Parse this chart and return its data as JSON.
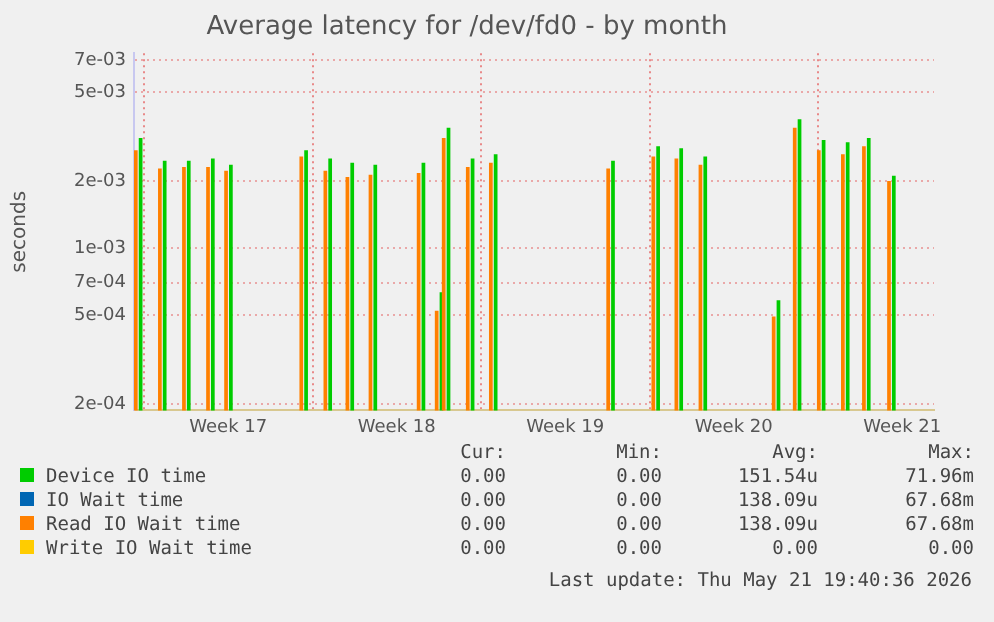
{
  "chart_data": {
    "type": "bar",
    "title": "Average latency for /dev/fd0 - by month",
    "ylabel": "seconds",
    "log": "y",
    "grid": true,
    "legend": "bottom",
    "xlim": [
      "2026-04-18T14:00",
      "2026-05-21T19:40"
    ],
    "ylim": [
      0.000187,
      0.0075
    ],
    "xticks": [
      {
        "value": "2026-04-19T00:00",
        "label": null
      },
      {
        "value": "2026-04-22T12:00",
        "label": "Week 17"
      },
      {
        "value": "2026-04-26T00:00",
        "label": null
      },
      {
        "value": "2026-04-29T12:00",
        "label": "Week 18"
      },
      {
        "value": "2026-05-03T00:00",
        "label": null
      },
      {
        "value": "2026-05-06T12:00",
        "label": "Week 19"
      },
      {
        "value": "2026-05-10T00:00",
        "label": null
      },
      {
        "value": "2026-05-13T12:00",
        "label": "Week 20"
      },
      {
        "value": "2026-05-17T00:00",
        "label": null
      },
      {
        "value": "2026-05-20T12:00",
        "label": "Week 21"
      }
    ],
    "yticks": [
      {
        "value": 0.0002,
        "label": "2e-04"
      },
      {
        "value": 0.0005,
        "label": "5e-04"
      },
      {
        "value": 0.0007,
        "label": "7e-04"
      },
      {
        "value": 0.001,
        "label": "1e-03"
      },
      {
        "value": 0.002,
        "label": "2e-03"
      },
      {
        "value": 0.005,
        "label": "5e-03"
      },
      {
        "value": 0.007,
        "label": "7e-03"
      }
    ],
    "x": [
      "2026-04-18T17:00",
      "2026-04-19T17:00",
      "2026-04-20T17:00",
      "2026-04-21T17:00",
      "2026-04-22T11:00",
      "2026-04-25T14:00",
      "2026-04-26T14:00",
      "2026-04-27T12:00",
      "2026-04-28T11:00",
      "2026-04-30T11:00",
      "2026-05-01T05:00",
      "2026-05-01T12:00",
      "2026-05-02T12:00",
      "2026-05-03T11:00",
      "2026-05-08T08:00",
      "2026-05-10T05:00",
      "2026-05-11T04:00",
      "2026-05-12T04:00",
      "2026-05-15T05:00",
      "2026-05-16T02:00",
      "2026-05-17T02:00",
      "2026-05-18T02:00",
      "2026-05-18T23:00",
      "2026-05-20T00:00"
    ],
    "series": [
      {
        "name": "Device IO time",
        "color": "#00cc00",
        "values": [
          0.0031,
          0.00245,
          0.00245,
          0.00251,
          0.00235,
          0.00273,
          0.00251,
          0.0024,
          0.00235,
          0.0024,
          0.00063,
          0.00345,
          0.00251,
          0.00262,
          0.00245,
          0.00285,
          0.00279,
          0.00256,
          0.00058,
          0.00376,
          0.00304,
          0.00297,
          0.0031,
          0.0021
        ]
      },
      {
        "name": "IO Wait time",
        "color": "#0066b3",
        "values": [
          null,
          null,
          null,
          null,
          null,
          null,
          null,
          null,
          null,
          null,
          null,
          null,
          null,
          null,
          null,
          null,
          null,
          null,
          null,
          null,
          null,
          null,
          null,
          null
        ]
      },
      {
        "name": "Read IO Wait time",
        "color": "#ff8000",
        "values": [
          0.00273,
          0.00226,
          0.0023,
          0.0023,
          0.00221,
          0.00256,
          0.00221,
          0.00207,
          0.00212,
          0.00216,
          0.00052,
          0.0031,
          0.0023,
          0.0024,
          0.00226,
          0.00256,
          0.00251,
          0.00235,
          0.00049,
          0.00345,
          0.00273,
          0.00262,
          0.00285,
          0.00199
        ]
      },
      {
        "name": "Write IO Wait time",
        "color": "#ffcc00",
        "values": [
          null,
          null,
          null,
          null,
          null,
          null,
          null,
          null,
          null,
          null,
          null,
          null,
          null,
          null,
          null,
          null,
          null,
          null,
          null,
          null,
          null,
          null,
          null,
          null
        ]
      }
    ],
    "annotations": [
      "Cur:",
      "Min:",
      "Avg:",
      "Max:",
      "0.00",
      "0.00",
      "151.54u",
      "71.96m",
      "0.00",
      "0.00",
      "138.09u",
      "67.68m",
      "0.00",
      "0.00",
      "138.09u",
      "67.68m",
      "0.00",
      "0.00",
      "0.00",
      "0.00",
      "Last update: Thu May 21 19:40:36 2026"
    ]
  }
}
